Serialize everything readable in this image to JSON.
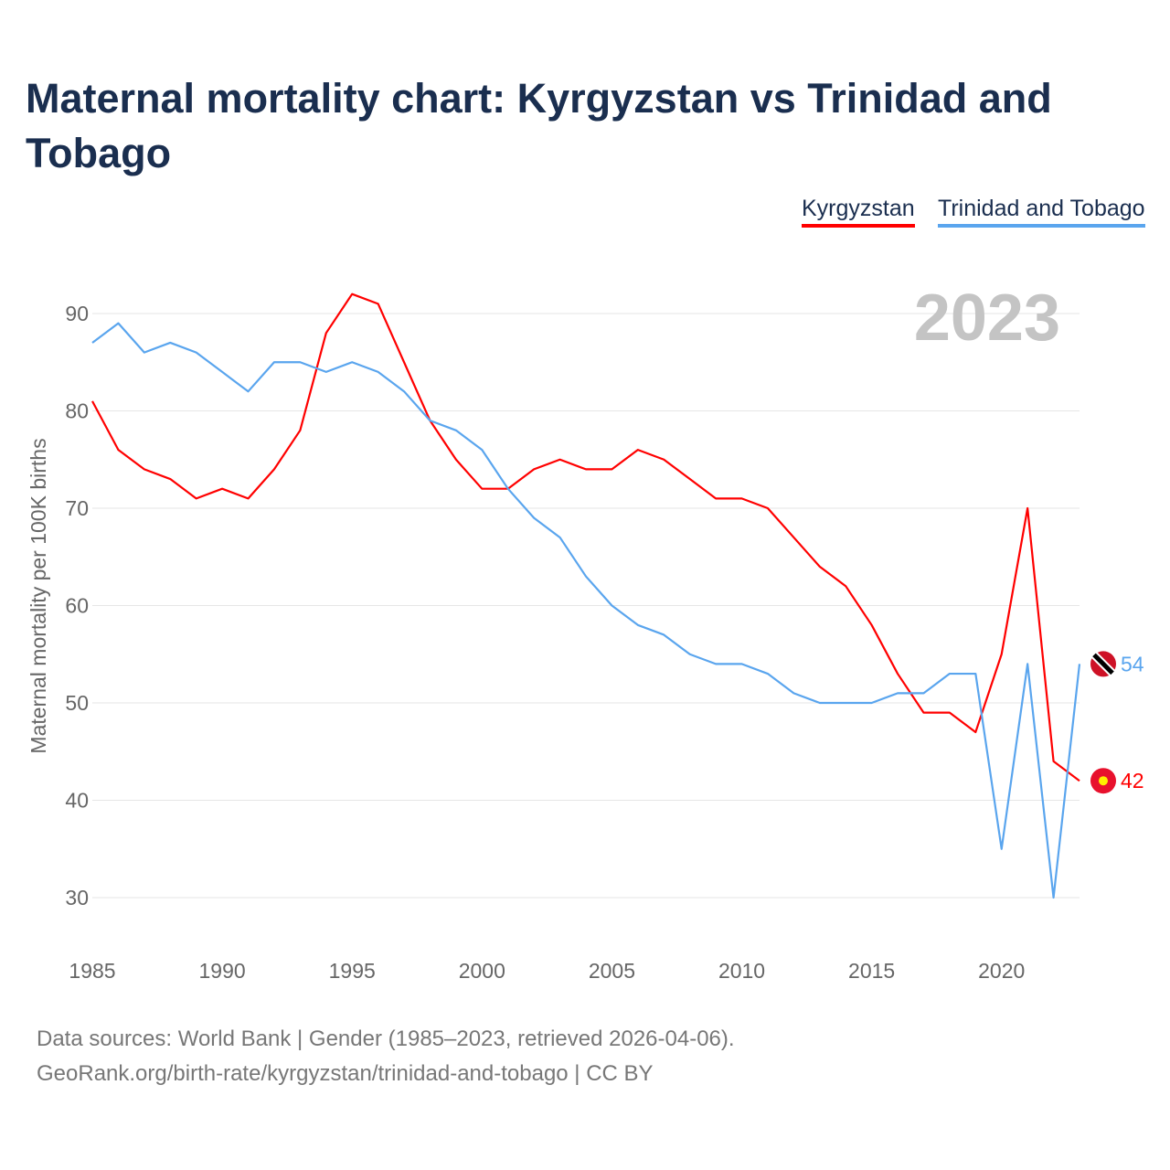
{
  "title": "Maternal mortality chart: Kyrgyzstan vs Trinidad and Tobago",
  "footer": {
    "line1": "Data sources: World Bank | Gender (1985–2023, retrieved 2026-04-06).",
    "line2": "GeoRank.org/birth-rate/kyrgyzstan/trinidad-and-tobago | CC BY"
  },
  "chart_data": {
    "type": "line",
    "title": "Maternal mortality chart: Kyrgyzstan vs Trinidad and Tobago",
    "year_label": "2023",
    "xlabel": "",
    "ylabel": "Maternal mortality per 100K births",
    "xlim": [
      1985,
      2023
    ],
    "ylim": [
      30,
      90
    ],
    "xticks": [
      "1985",
      "1990",
      "1995",
      "2000",
      "2005",
      "2010",
      "2015",
      "2020"
    ],
    "yticks": [
      "30",
      "40",
      "50",
      "60",
      "70",
      "80",
      "90"
    ],
    "legend": "top-right",
    "x": [
      1985,
      1986,
      1987,
      1988,
      1989,
      1990,
      1991,
      1992,
      1993,
      1994,
      1995,
      1996,
      1997,
      1998,
      1999,
      2000,
      2001,
      2002,
      2003,
      2004,
      2005,
      2006,
      2007,
      2008,
      2009,
      2010,
      2011,
      2012,
      2013,
      2014,
      2015,
      2016,
      2017,
      2018,
      2019,
      2020,
      2021,
      2022,
      2023
    ],
    "series": [
      {
        "name": "Kyrgyzstan",
        "color": "#ff0000",
        "end_label": "42",
        "values": [
          81,
          76,
          74,
          73,
          71,
          72,
          71,
          74,
          78,
          88,
          92,
          91,
          85,
          79,
          75,
          72,
          72,
          74,
          75,
          74,
          74,
          76,
          75,
          73,
          71,
          71,
          70,
          67,
          64,
          62,
          58,
          53,
          49,
          49,
          47,
          55,
          70,
          44,
          42
        ]
      },
      {
        "name": "Trinidad and Tobago",
        "color": "#5aa5ee",
        "end_label": "54",
        "values": [
          87,
          89,
          86,
          87,
          86,
          84,
          82,
          85,
          85,
          84,
          85,
          84,
          82,
          79,
          78,
          76,
          72,
          69,
          67,
          63,
          60,
          58,
          57,
          55,
          54,
          54,
          53,
          51,
          50,
          50,
          50,
          51,
          51,
          53,
          53,
          35,
          54,
          30,
          54
        ]
      }
    ]
  }
}
